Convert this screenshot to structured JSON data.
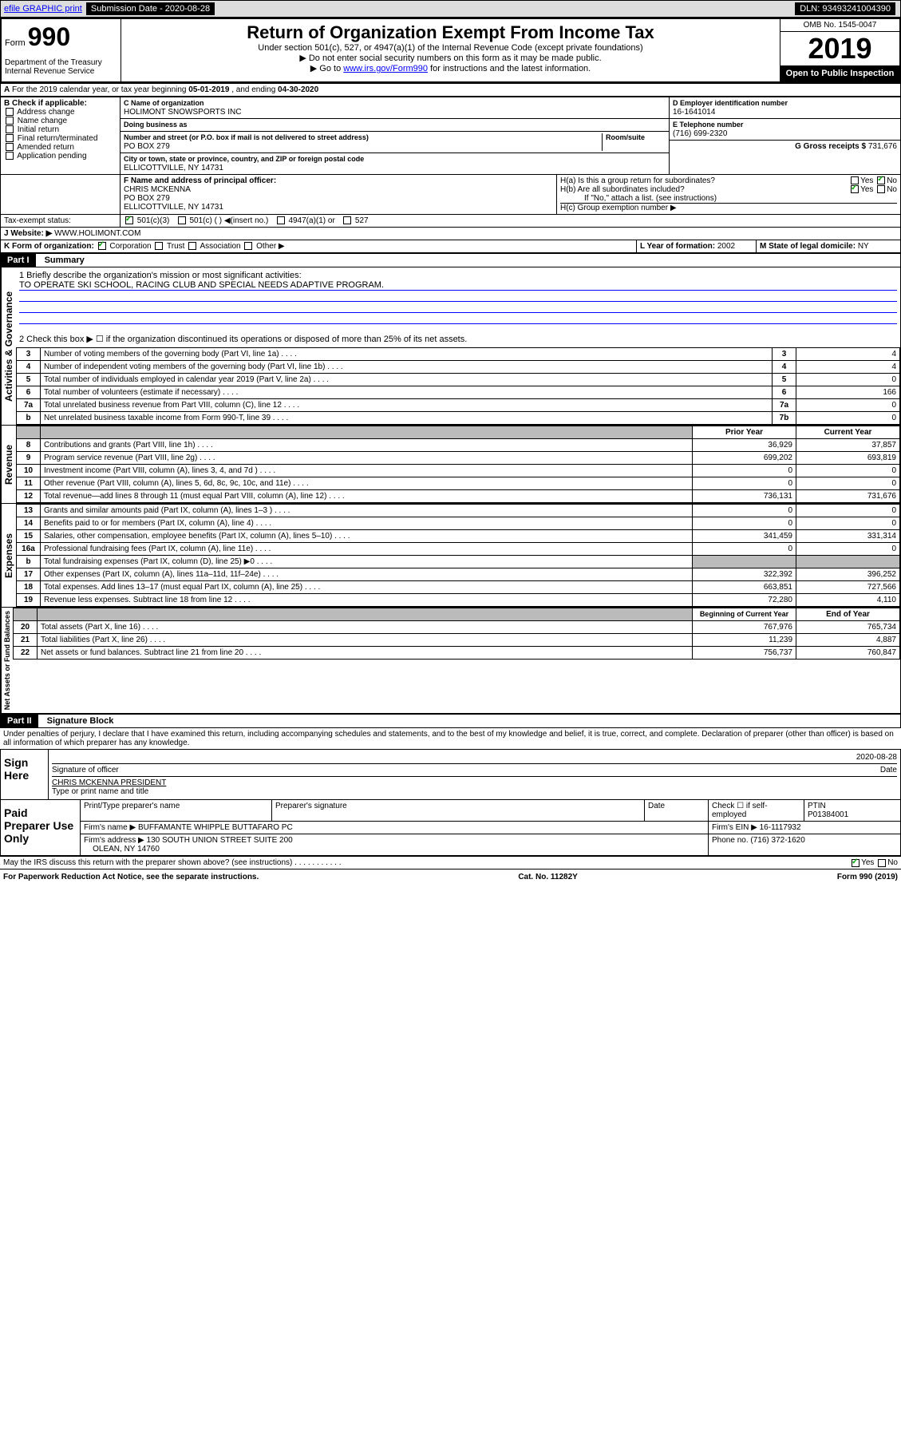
{
  "top": {
    "efile": "efile GRAPHIC print",
    "sub_label": "Submission Date - 2020-08-28",
    "dln": "DLN: 93493241004390"
  },
  "header": {
    "form_prefix": "Form",
    "form_num": "990",
    "title": "Return of Organization Exempt From Income Tax",
    "sub1": "Under section 501(c), 527, or 4947(a)(1) of the Internal Revenue Code (except private foundations)",
    "sub2": "▶ Do not enter social security numbers on this form as it may be made public.",
    "sub3_pre": "▶ Go to ",
    "sub3_link": "www.irs.gov/Form990",
    "sub3_post": " for instructions and the latest information.",
    "dept": "Department of the Treasury\nInternal Revenue Service",
    "omb": "OMB No. 1545-0047",
    "year": "2019",
    "badge": "Open to Public Inspection"
  },
  "a": {
    "text_pre": "For the 2019 calendar year, or tax year beginning ",
    "begin": "05-01-2019",
    "mid": " , and ending ",
    "end": "04-30-2020"
  },
  "b": {
    "label": "B Check if applicable:",
    "items": [
      "Address change",
      "Name change",
      "Initial return",
      "Final return/terminated",
      "Amended return",
      "Application pending"
    ]
  },
  "c": {
    "name_label": "C Name of organization",
    "name": "HOLIMONT SNOWSPORTS INC",
    "dba_label": "Doing business as",
    "addr_label": "Number and street (or P.O. box if mail is not delivered to street address)",
    "room_label": "Room/suite",
    "addr": "PO BOX 279",
    "city_label": "City or town, state or province, country, and ZIP or foreign postal code",
    "city": "ELLICOTTVILLE, NY 14731"
  },
  "d": {
    "label": "D Employer identification number",
    "value": "16-1641014"
  },
  "e": {
    "label": "E Telephone number",
    "value": "(716) 699-2320"
  },
  "g": {
    "label": "G Gross receipts $",
    "value": "731,676"
  },
  "f": {
    "label": "F Name and address of principal officer:",
    "name": "CHRIS MCKENNA",
    "addr": "PO BOX 279",
    "city": "ELLICOTTVILLE, NY 14731"
  },
  "h": {
    "a": "H(a) Is this a group return for subordinates?",
    "b": "H(b) Are all subordinates included?",
    "note": "If \"No,\" attach a list. (see instructions)",
    "c": "H(c) Group exemption number ▶"
  },
  "i": {
    "label": "Tax-exempt status:",
    "opts": [
      "501(c)(3)",
      "501(c) ( ) ◀(insert no.)",
      "4947(a)(1) or",
      "527"
    ]
  },
  "j": {
    "label": "Website: ▶",
    "value": "WWW.HOLIMONT.COM"
  },
  "k": {
    "label": "K Form of organization:",
    "opts": [
      "Corporation",
      "Trust",
      "Association",
      "Other ▶"
    ]
  },
  "l": {
    "label": "L Year of formation:",
    "value": "2002"
  },
  "m": {
    "label": "M State of legal domicile:",
    "value": "NY"
  },
  "part1": {
    "tag": "Part I",
    "title": "Summary",
    "q1": "1 Briefly describe the organization's mission or most significant activities:",
    "q1_ans": "TO OPERATE SKI SCHOOL, RACING CLUB AND SPECIAL NEEDS ADAPTIVE PROGRAM.",
    "q2": "2 Check this box ▶ ☐ if the organization discontinued its operations or disposed of more than 25% of its net assets.",
    "rows_gov": [
      {
        "n": "3",
        "d": "Number of voting members of the governing body (Part VI, line 1a)",
        "c": "3",
        "v": "4"
      },
      {
        "n": "4",
        "d": "Number of independent voting members of the governing body (Part VI, line 1b)",
        "c": "4",
        "v": "4"
      },
      {
        "n": "5",
        "d": "Total number of individuals employed in calendar year 2019 (Part V, line 2a)",
        "c": "5",
        "v": "0"
      },
      {
        "n": "6",
        "d": "Total number of volunteers (estimate if necessary)",
        "c": "6",
        "v": "166"
      },
      {
        "n": "7a",
        "d": "Total unrelated business revenue from Part VIII, column (C), line 12",
        "c": "7a",
        "v": "0"
      },
      {
        "n": "b",
        "d": "Net unrelated business taxable income from Form 990-T, line 39",
        "c": "7b",
        "v": "0"
      }
    ],
    "hdr_prior": "Prior Year",
    "hdr_curr": "Current Year",
    "rows_rev": [
      {
        "n": "8",
        "d": "Contributions and grants (Part VIII, line 1h)",
        "p": "36,929",
        "c": "37,857"
      },
      {
        "n": "9",
        "d": "Program service revenue (Part VIII, line 2g)",
        "p": "699,202",
        "c": "693,819"
      },
      {
        "n": "10",
        "d": "Investment income (Part VIII, column (A), lines 3, 4, and 7d )",
        "p": "0",
        "c": "0"
      },
      {
        "n": "11",
        "d": "Other revenue (Part VIII, column (A), lines 5, 6d, 8c, 9c, 10c, and 11e)",
        "p": "0",
        "c": "0"
      },
      {
        "n": "12",
        "d": "Total revenue—add lines 8 through 11 (must equal Part VIII, column (A), line 12)",
        "p": "736,131",
        "c": "731,676"
      }
    ],
    "rows_exp": [
      {
        "n": "13",
        "d": "Grants and similar amounts paid (Part IX, column (A), lines 1–3 )",
        "p": "0",
        "c": "0"
      },
      {
        "n": "14",
        "d": "Benefits paid to or for members (Part IX, column (A), line 4)",
        "p": "0",
        "c": "0"
      },
      {
        "n": "15",
        "d": "Salaries, other compensation, employee benefits (Part IX, column (A), lines 5–10)",
        "p": "341,459",
        "c": "331,314"
      },
      {
        "n": "16a",
        "d": "Professional fundraising fees (Part IX, column (A), line 11e)",
        "p": "0",
        "c": "0"
      },
      {
        "n": "b",
        "d": "Total fundraising expenses (Part IX, column (D), line 25) ▶0",
        "p": "",
        "c": "",
        "shaded": true
      },
      {
        "n": "17",
        "d": "Other expenses (Part IX, column (A), lines 11a–11d, 11f–24e)",
        "p": "322,392",
        "c": "396,252"
      },
      {
        "n": "18",
        "d": "Total expenses. Add lines 13–17 (must equal Part IX, column (A), line 25)",
        "p": "663,851",
        "c": "727,566"
      },
      {
        "n": "19",
        "d": "Revenue less expenses. Subtract line 18 from line 12",
        "p": "72,280",
        "c": "4,110"
      }
    ],
    "hdr_begin": "Beginning of Current Year",
    "hdr_end": "End of Year",
    "rows_net": [
      {
        "n": "20",
        "d": "Total assets (Part X, line 16)",
        "p": "767,976",
        "c": "765,734"
      },
      {
        "n": "21",
        "d": "Total liabilities (Part X, line 26)",
        "p": "11,239",
        "c": "4,887"
      },
      {
        "n": "22",
        "d": "Net assets or fund balances. Subtract line 21 from line 20",
        "p": "756,737",
        "c": "760,847"
      }
    ],
    "vert_gov": "Activities & Governance",
    "vert_rev": "Revenue",
    "vert_exp": "Expenses",
    "vert_net": "Net Assets or Fund Balances"
  },
  "part2": {
    "tag": "Part II",
    "title": "Signature Block",
    "perjury": "Under penalties of perjury, I declare that I have examined this return, including accompanying schedules and statements, and to the best of my knowledge and belief, it is true, correct, and complete. Declaration of preparer (other than officer) is based on all information of which preparer has any knowledge.",
    "sign_label": "Sign Here",
    "sig_officer": "Signature of officer",
    "date_label": "Date",
    "date": "2020-08-28",
    "officer_name": "CHRIS MCKENNA PRESIDENT",
    "type_name": "Type or print name and title",
    "paid_label": "Paid Preparer Use Only",
    "prep_name_label": "Print/Type preparer's name",
    "prep_sig_label": "Preparer's signature",
    "check_self": "Check ☐ if self-employed",
    "ptin_label": "PTIN",
    "ptin": "P01384001",
    "firm_name_label": "Firm's name ▶",
    "firm_name": "BUFFAMANTE WHIPPLE BUTTAFARO PC",
    "firm_ein_label": "Firm's EIN ▶",
    "firm_ein": "16-1117932",
    "firm_addr_label": "Firm's address ▶",
    "firm_addr": "130 SOUTH UNION STREET SUITE 200",
    "firm_city": "OLEAN, NY 14760",
    "phone_label": "Phone no.",
    "phone": "(716) 372-1620",
    "discuss": "May the IRS discuss this return with the preparer shown above? (see instructions)"
  },
  "footer": {
    "pra": "For Paperwork Reduction Act Notice, see the separate instructions.",
    "cat": "Cat. No. 11282Y",
    "form": "Form 990 (2019)"
  },
  "yes": "Yes",
  "no": "No"
}
